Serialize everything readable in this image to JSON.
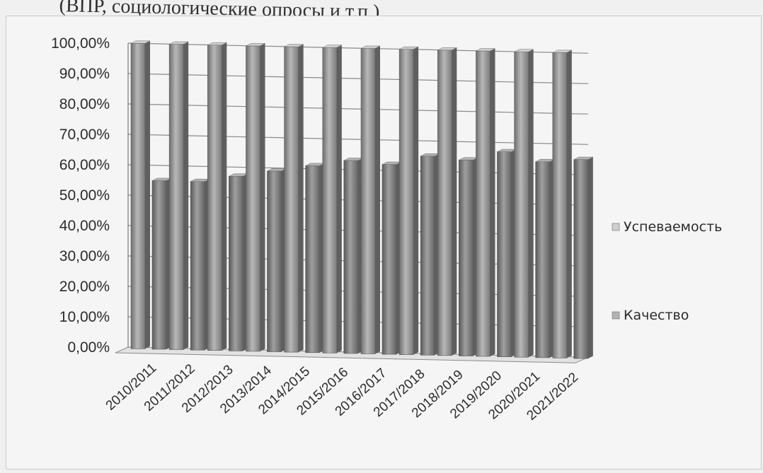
{
  "page_header": "(ВПР, социологические опросы и т.п.)",
  "chart_data": {
    "type": "bar",
    "categories": [
      "2010/2011",
      "2011/2012",
      "2012/2013",
      "2013/2014",
      "2014/2015",
      "2015/2016",
      "2016/2017",
      "2017/2018",
      "2018/2019",
      "2019/2020",
      "2020/2021",
      "2021/2022"
    ],
    "series": [
      {
        "name": "Успеваемость",
        "values": [
          100,
          100,
          100,
          100,
          100,
          100,
          100,
          100,
          100,
          100,
          100,
          100
        ],
        "color": "#a9a9a9"
      },
      {
        "name": "Качество",
        "values": [
          55,
          55,
          57,
          59,
          61,
          63,
          62,
          65,
          64,
          67,
          64,
          65
        ],
        "color": "#8e8e8e"
      }
    ],
    "yticks": [
      "0,00%",
      "10,00%",
      "20,00%",
      "30,00%",
      "40,00%",
      "50,00%",
      "60,00%",
      "70,00%",
      "80,00%",
      "90,00%",
      "100,00%"
    ],
    "ylim": [
      0,
      100
    ],
    "y_unit": "%",
    "grid": true,
    "legend": "right",
    "style": "3d-columns"
  }
}
